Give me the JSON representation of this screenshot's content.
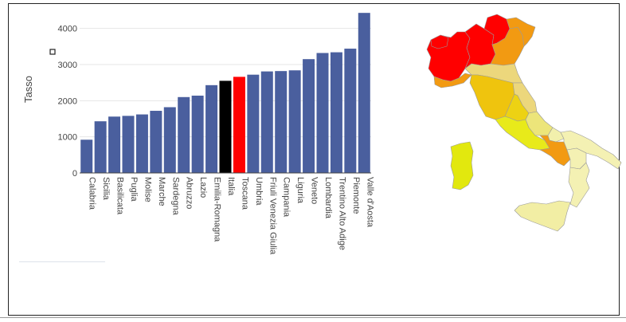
{
  "chart_data": {
    "type": "bar",
    "title": "",
    "xlabel": "",
    "ylabel": "Tasso",
    "ylim": [
      0,
      4500
    ],
    "yticks": [
      0,
      1000,
      2000,
      3000,
      4000
    ],
    "grid": true,
    "legend": "none",
    "categories": [
      "Calabria",
      "Sicilia",
      "Basilicata",
      "Puglia",
      "Molise",
      "Marche",
      "Sardegna",
      "Abruzzo",
      "Lazio",
      "Emilia-Romagna",
      "Italia",
      "Toscana",
      "Umbria",
      "Friuli Venezia Giulia",
      "Campania",
      "Liguria",
      "Veneto",
      "Lombardia",
      "Trentino Alto Adige",
      "Piemonte",
      "Valle d'Aosta"
    ],
    "values": [
      920,
      1430,
      1560,
      1580,
      1620,
      1720,
      1820,
      2100,
      2140,
      2430,
      2550,
      2660,
      2720,
      2810,
      2820,
      2840,
      3150,
      3320,
      3340,
      3440,
      4430
    ],
    "bar_colors": [
      "#4a5f9e",
      "#4a5f9e",
      "#4a5f9e",
      "#4a5f9e",
      "#4a5f9e",
      "#4a5f9e",
      "#4a5f9e",
      "#4a5f9e",
      "#4a5f9e",
      "#4a5f9e",
      "#000000",
      "#ff0000",
      "#4a5f9e",
      "#4a5f9e",
      "#4a5f9e",
      "#4a5f9e",
      "#4a5f9e",
      "#4a5f9e",
      "#4a5f9e",
      "#4a5f9e",
      "#4a5f9e"
    ]
  },
  "map": {
    "type": "choropleth",
    "regions": [
      {
        "name": "Valle d'Aosta",
        "color": "#ff0000"
      },
      {
        "name": "Piemonte",
        "color": "#ff0000"
      },
      {
        "name": "Lombardia",
        "color": "#ff0000"
      },
      {
        "name": "Trentino Alto Adige",
        "color": "#ff0000"
      },
      {
        "name": "Veneto",
        "color": "#f29a12"
      },
      {
        "name": "Friuli Venezia Giulia",
        "color": "#f29a12"
      },
      {
        "name": "Liguria",
        "color": "#f29a12"
      },
      {
        "name": "Emilia-Romagna",
        "color": "#ecd77c"
      },
      {
        "name": "Toscana",
        "color": "#efc40e"
      },
      {
        "name": "Umbria",
        "color": "#edd213"
      },
      {
        "name": "Marche",
        "color": "#ecd77c"
      },
      {
        "name": "Lazio",
        "color": "#e8ea1a"
      },
      {
        "name": "Abruzzo",
        "color": "#ece57a"
      },
      {
        "name": "Molise",
        "color": "#f2f0ac"
      },
      {
        "name": "Campania",
        "color": "#f29a12"
      },
      {
        "name": "Puglia",
        "color": "#f4f1b3"
      },
      {
        "name": "Basilicata",
        "color": "#f4f1b3"
      },
      {
        "name": "Calabria",
        "color": "#f4f1b3"
      },
      {
        "name": "Sicilia",
        "color": "#f2eea4"
      },
      {
        "name": "Sardegna",
        "color": "#e2e80e"
      }
    ]
  }
}
